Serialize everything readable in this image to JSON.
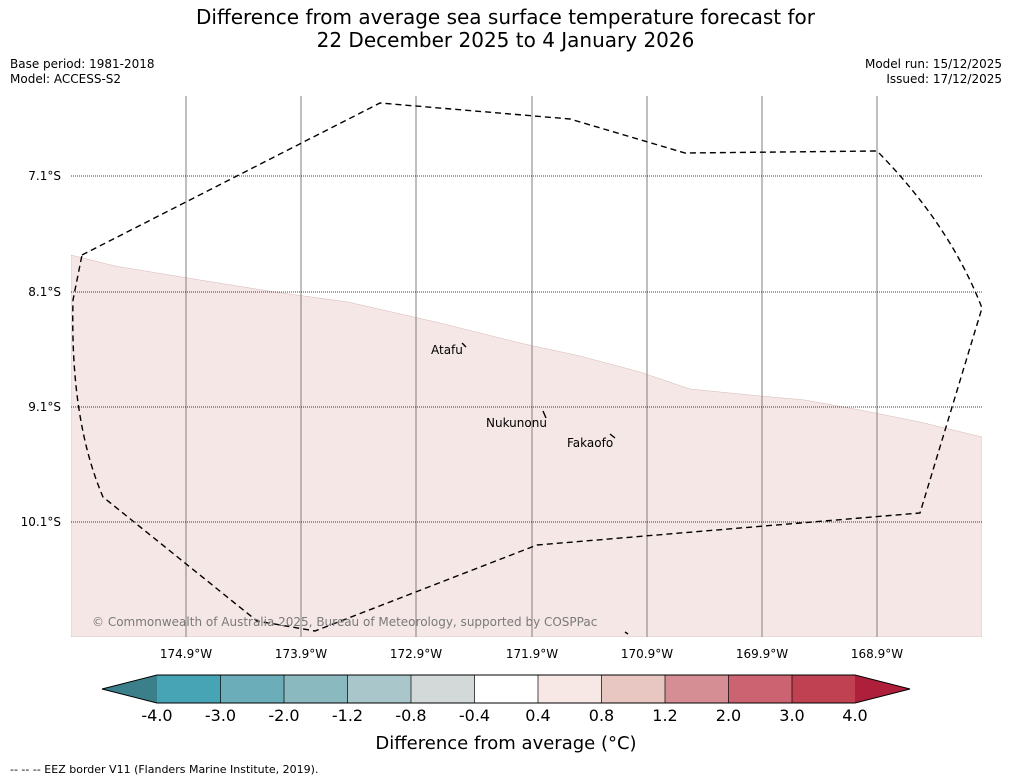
{
  "title": {
    "line1": "Difference from average sea surface temperature forecast for",
    "line2": "22 December 2025 to 4 January 2026"
  },
  "meta": {
    "base_period": "Base period: 1981-2018",
    "model": "Model: ACCESS-S2",
    "model_run": "Model run: 15/12/2025",
    "issued": "Issued: 17/12/2025"
  },
  "map": {
    "longitude_labels": [
      "174.9°W",
      "173.9°W",
      "172.9°W",
      "171.9°W",
      "170.9°W",
      "169.9°W",
      "168.9°W"
    ],
    "latitude_labels": [
      "7.1°S",
      "8.1°S",
      "9.1°S",
      "10.1°S"
    ],
    "places": [
      {
        "name": "Atafu"
      },
      {
        "name": "Nukunonu"
      },
      {
        "name": "Fakaofo"
      }
    ],
    "copyright": "© Commonwealth of Australia 2025, Bureau of Meteorology, supported by COSPPac",
    "colors": {
      "anomaly_0_4_to_0_8": "#f5e7e5",
      "eez_line": "#000000",
      "gridline": "#7f7f7f"
    }
  },
  "colorbar": {
    "ticks": [
      "-4.0",
      "-3.0",
      "-2.0",
      "-1.2",
      "-0.8",
      "-0.4",
      "0.4",
      "0.8",
      "1.2",
      "2.0",
      "3.0",
      "4.0"
    ],
    "colors": [
      "#3a7f89",
      "#47a4b4",
      "#6baeb9",
      "#8bb9c0",
      "#a9c7ca",
      "#d2d9d8",
      "#ffffff",
      "#f7e8e6",
      "#e8c6c2",
      "#d68e95",
      "#cb6470",
      "#c04252",
      "#ae1f3b"
    ],
    "label": "Difference from average (°C)"
  },
  "footer": {
    "legend": "--  --  -- EEZ border V11 (Flanders Marine Institute, 2019)."
  }
}
